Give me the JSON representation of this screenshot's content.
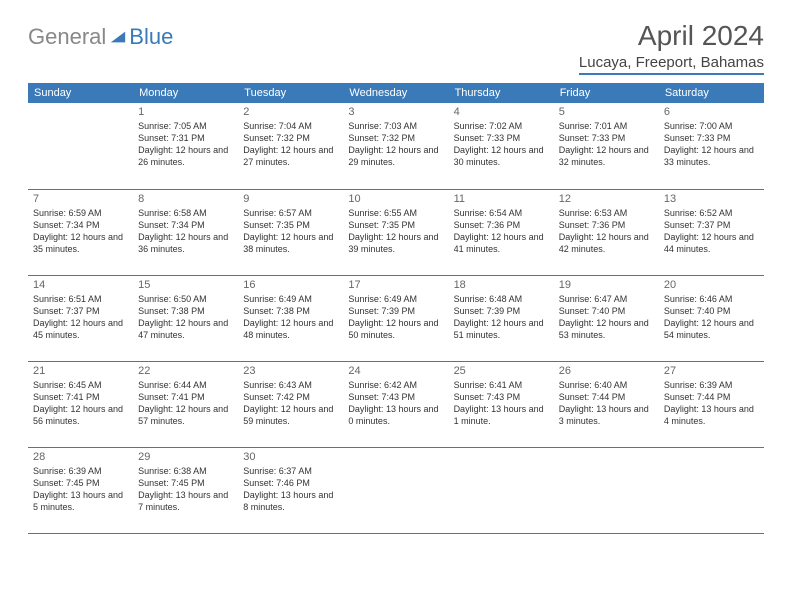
{
  "logo": {
    "text1": "General",
    "text2": "Blue",
    "text1_color": "#888888",
    "text2_color": "#3a7ab8",
    "icon_color": "#3a7ab8"
  },
  "title": "April 2024",
  "location": "Lucaya, Freeport, Bahamas",
  "colors": {
    "header_bg": "#3a7ab8",
    "header_text": "#ffffff",
    "border": "#3a7ab8",
    "daynum": "#666666",
    "text": "#333333"
  },
  "day_headers": [
    "Sunday",
    "Monday",
    "Tuesday",
    "Wednesday",
    "Thursday",
    "Friday",
    "Saturday"
  ],
  "weeks": [
    [
      {
        "num": "",
        "sunrise": "",
        "sunset": "",
        "daylight": ""
      },
      {
        "num": "1",
        "sunrise": "Sunrise: 7:05 AM",
        "sunset": "Sunset: 7:31 PM",
        "daylight": "Daylight: 12 hours and 26 minutes."
      },
      {
        "num": "2",
        "sunrise": "Sunrise: 7:04 AM",
        "sunset": "Sunset: 7:32 PM",
        "daylight": "Daylight: 12 hours and 27 minutes."
      },
      {
        "num": "3",
        "sunrise": "Sunrise: 7:03 AM",
        "sunset": "Sunset: 7:32 PM",
        "daylight": "Daylight: 12 hours and 29 minutes."
      },
      {
        "num": "4",
        "sunrise": "Sunrise: 7:02 AM",
        "sunset": "Sunset: 7:33 PM",
        "daylight": "Daylight: 12 hours and 30 minutes."
      },
      {
        "num": "5",
        "sunrise": "Sunrise: 7:01 AM",
        "sunset": "Sunset: 7:33 PM",
        "daylight": "Daylight: 12 hours and 32 minutes."
      },
      {
        "num": "6",
        "sunrise": "Sunrise: 7:00 AM",
        "sunset": "Sunset: 7:33 PM",
        "daylight": "Daylight: 12 hours and 33 minutes."
      }
    ],
    [
      {
        "num": "7",
        "sunrise": "Sunrise: 6:59 AM",
        "sunset": "Sunset: 7:34 PM",
        "daylight": "Daylight: 12 hours and 35 minutes."
      },
      {
        "num": "8",
        "sunrise": "Sunrise: 6:58 AM",
        "sunset": "Sunset: 7:34 PM",
        "daylight": "Daylight: 12 hours and 36 minutes."
      },
      {
        "num": "9",
        "sunrise": "Sunrise: 6:57 AM",
        "sunset": "Sunset: 7:35 PM",
        "daylight": "Daylight: 12 hours and 38 minutes."
      },
      {
        "num": "10",
        "sunrise": "Sunrise: 6:55 AM",
        "sunset": "Sunset: 7:35 PM",
        "daylight": "Daylight: 12 hours and 39 minutes."
      },
      {
        "num": "11",
        "sunrise": "Sunrise: 6:54 AM",
        "sunset": "Sunset: 7:36 PM",
        "daylight": "Daylight: 12 hours and 41 minutes."
      },
      {
        "num": "12",
        "sunrise": "Sunrise: 6:53 AM",
        "sunset": "Sunset: 7:36 PM",
        "daylight": "Daylight: 12 hours and 42 minutes."
      },
      {
        "num": "13",
        "sunrise": "Sunrise: 6:52 AM",
        "sunset": "Sunset: 7:37 PM",
        "daylight": "Daylight: 12 hours and 44 minutes."
      }
    ],
    [
      {
        "num": "14",
        "sunrise": "Sunrise: 6:51 AM",
        "sunset": "Sunset: 7:37 PM",
        "daylight": "Daylight: 12 hours and 45 minutes."
      },
      {
        "num": "15",
        "sunrise": "Sunrise: 6:50 AM",
        "sunset": "Sunset: 7:38 PM",
        "daylight": "Daylight: 12 hours and 47 minutes."
      },
      {
        "num": "16",
        "sunrise": "Sunrise: 6:49 AM",
        "sunset": "Sunset: 7:38 PM",
        "daylight": "Daylight: 12 hours and 48 minutes."
      },
      {
        "num": "17",
        "sunrise": "Sunrise: 6:49 AM",
        "sunset": "Sunset: 7:39 PM",
        "daylight": "Daylight: 12 hours and 50 minutes."
      },
      {
        "num": "18",
        "sunrise": "Sunrise: 6:48 AM",
        "sunset": "Sunset: 7:39 PM",
        "daylight": "Daylight: 12 hours and 51 minutes."
      },
      {
        "num": "19",
        "sunrise": "Sunrise: 6:47 AM",
        "sunset": "Sunset: 7:40 PM",
        "daylight": "Daylight: 12 hours and 53 minutes."
      },
      {
        "num": "20",
        "sunrise": "Sunrise: 6:46 AM",
        "sunset": "Sunset: 7:40 PM",
        "daylight": "Daylight: 12 hours and 54 minutes."
      }
    ],
    [
      {
        "num": "21",
        "sunrise": "Sunrise: 6:45 AM",
        "sunset": "Sunset: 7:41 PM",
        "daylight": "Daylight: 12 hours and 56 minutes."
      },
      {
        "num": "22",
        "sunrise": "Sunrise: 6:44 AM",
        "sunset": "Sunset: 7:41 PM",
        "daylight": "Daylight: 12 hours and 57 minutes."
      },
      {
        "num": "23",
        "sunrise": "Sunrise: 6:43 AM",
        "sunset": "Sunset: 7:42 PM",
        "daylight": "Daylight: 12 hours and 59 minutes."
      },
      {
        "num": "24",
        "sunrise": "Sunrise: 6:42 AM",
        "sunset": "Sunset: 7:43 PM",
        "daylight": "Daylight: 13 hours and 0 minutes."
      },
      {
        "num": "25",
        "sunrise": "Sunrise: 6:41 AM",
        "sunset": "Sunset: 7:43 PM",
        "daylight": "Daylight: 13 hours and 1 minute."
      },
      {
        "num": "26",
        "sunrise": "Sunrise: 6:40 AM",
        "sunset": "Sunset: 7:44 PM",
        "daylight": "Daylight: 13 hours and 3 minutes."
      },
      {
        "num": "27",
        "sunrise": "Sunrise: 6:39 AM",
        "sunset": "Sunset: 7:44 PM",
        "daylight": "Daylight: 13 hours and 4 minutes."
      }
    ],
    [
      {
        "num": "28",
        "sunrise": "Sunrise: 6:39 AM",
        "sunset": "Sunset: 7:45 PM",
        "daylight": "Daylight: 13 hours and 5 minutes."
      },
      {
        "num": "29",
        "sunrise": "Sunrise: 6:38 AM",
        "sunset": "Sunset: 7:45 PM",
        "daylight": "Daylight: 13 hours and 7 minutes."
      },
      {
        "num": "30",
        "sunrise": "Sunrise: 6:37 AM",
        "sunset": "Sunset: 7:46 PM",
        "daylight": "Daylight: 13 hours and 8 minutes."
      },
      {
        "num": "",
        "sunrise": "",
        "sunset": "",
        "daylight": ""
      },
      {
        "num": "",
        "sunrise": "",
        "sunset": "",
        "daylight": ""
      },
      {
        "num": "",
        "sunrise": "",
        "sunset": "",
        "daylight": ""
      },
      {
        "num": "",
        "sunrise": "",
        "sunset": "",
        "daylight": ""
      }
    ]
  ]
}
